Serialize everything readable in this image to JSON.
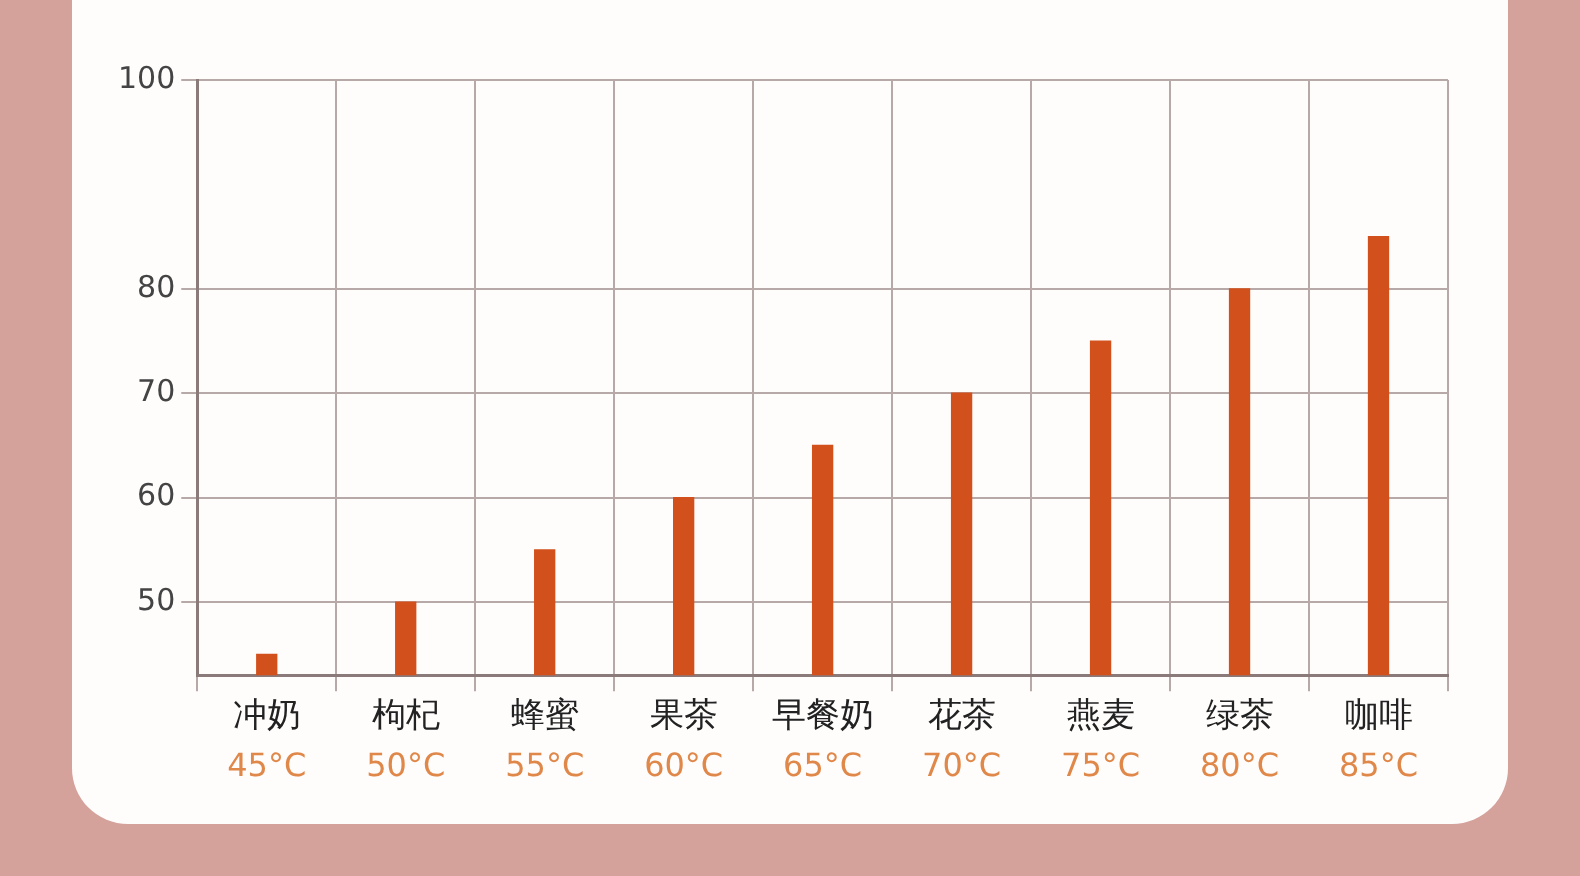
{
  "chart_data": {
    "type": "bar",
    "categories": [
      "冲奶",
      "枸杞",
      "蜂蜜",
      "果茶",
      "早餐奶",
      "花茶",
      "燕麦",
      "绿茶",
      "咖啡"
    ],
    "values": [
      45,
      50,
      55,
      60,
      65,
      70,
      75,
      80,
      85
    ],
    "value_labels": [
      "45°C",
      "50°C",
      "55°C",
      "60°C",
      "65°C",
      "70°C",
      "75°C",
      "80°C",
      "85°C"
    ],
    "color": "#d2501c",
    "ylim": [
      43,
      100
    ],
    "yticks": [
      50,
      60,
      70,
      80,
      100
    ],
    "grid": true,
    "legend": false
  }
}
